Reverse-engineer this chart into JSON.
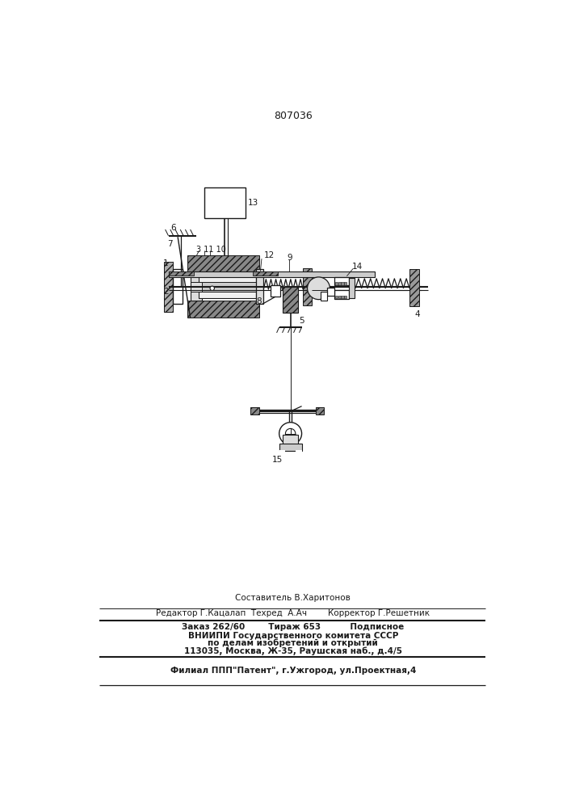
{
  "patent_number": "807036",
  "bg_color": "#ffffff",
  "line_color": "#1a1a1a",
  "footer_lines": [
    "Составитель В.Харитонов",
    "Редактор Г.Кацалап  Техред  А.Ач        Корректор Г.Решетник",
    "Заказ 262/60        Тираж 653          Подписное",
    "ВНИИПИ Государственного комитета СССР",
    "по делам изобретений и открытий",
    "113035, Москва, Ж-35, Раушская наб., д.4/5",
    "Филиал ППП\"Патент\", г.Ужгород, ул.Проектная,4"
  ]
}
